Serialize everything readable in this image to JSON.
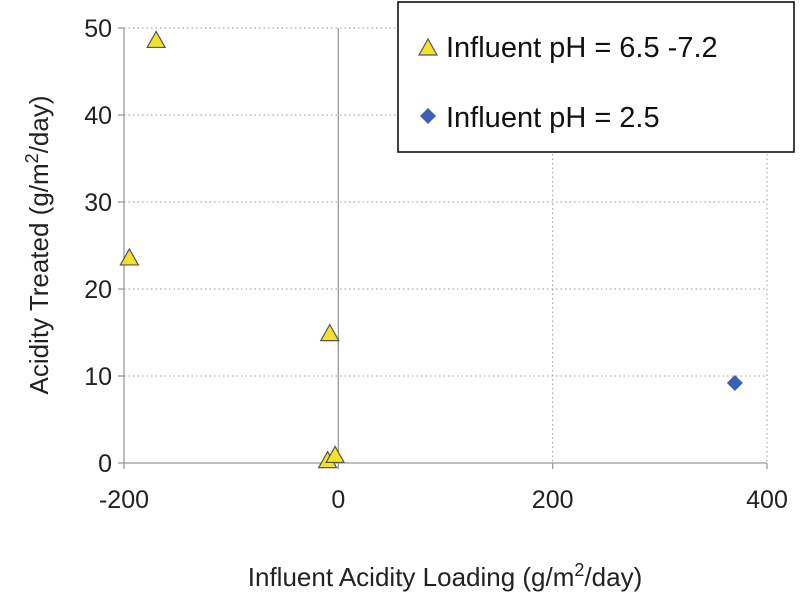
{
  "chart_data": {
    "type": "scatter",
    "title": "",
    "xlabel_parts": [
      "Influent Acidity Loading (g/m",
      "2",
      "/day)"
    ],
    "ylabel_parts": [
      "Acidity Treated (g/m",
      "2",
      "/day)"
    ],
    "xlim": [
      -200,
      400
    ],
    "ylim": [
      0,
      50
    ],
    "xticks": [
      -200,
      0,
      200,
      400
    ],
    "yticks": [
      0,
      10,
      20,
      30,
      40,
      50
    ],
    "grid": {
      "vertical": true,
      "horizontal": true,
      "style": "dotted"
    },
    "legend_position": "top-right",
    "series": [
      {
        "name": "Influent pH = 6.5 -7.2",
        "marker": "triangle",
        "color": "#f3e22a",
        "points": [
          {
            "x": -170,
            "y": 48.5
          },
          {
            "x": -195,
            "y": 23.5
          },
          {
            "x": -8,
            "y": 14.8
          },
          {
            "x": -10,
            "y": 0.2
          },
          {
            "x": -3,
            "y": 0.8
          }
        ]
      },
      {
        "name": "Influent pH = 2.5",
        "marker": "diamond",
        "color": "#3f5fb5",
        "points": [
          {
            "x": 370,
            "y": 9.2
          }
        ]
      }
    ]
  }
}
